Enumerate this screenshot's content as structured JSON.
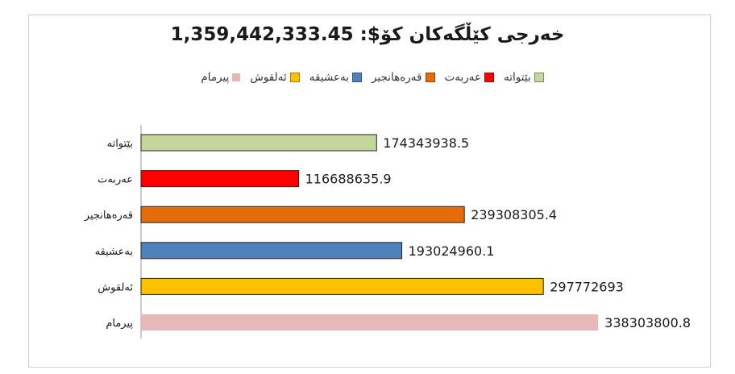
{
  "chart_data": {
    "type": "bar",
    "orientation": "horizontal",
    "title": "خەرجی کێڵگەکان کۆ$: 1,359,442,333.45",
    "categories": [
      "بێتواتە",
      "عەربەت",
      "قەرەهانجیر",
      "بەعشیقە",
      "ئەلقوش",
      "پیرمام"
    ],
    "values": [
      174343938.5,
      116688635.9,
      239308305.4,
      193024960.1,
      297772693,
      338303800.8
    ],
    "value_labels": [
      "174343938.5",
      "116688635.9",
      "239308305.4",
      "193024960.1",
      "297772693",
      "338303800.8"
    ],
    "colors": [
      "#c3d69b",
      "#ff0000",
      "#e46c0a",
      "#4f81bd",
      "#ffc000",
      "#e6b9b8"
    ],
    "legend": {
      "position": "top",
      "entries": [
        "بێتواتە",
        "عەربەت",
        "قەرەهانجیر",
        "بەعشیقە",
        "ئەلقوش",
        "پیرمام"
      ]
    },
    "xlim": [
      0,
      340000000
    ],
    "grid": false
  }
}
